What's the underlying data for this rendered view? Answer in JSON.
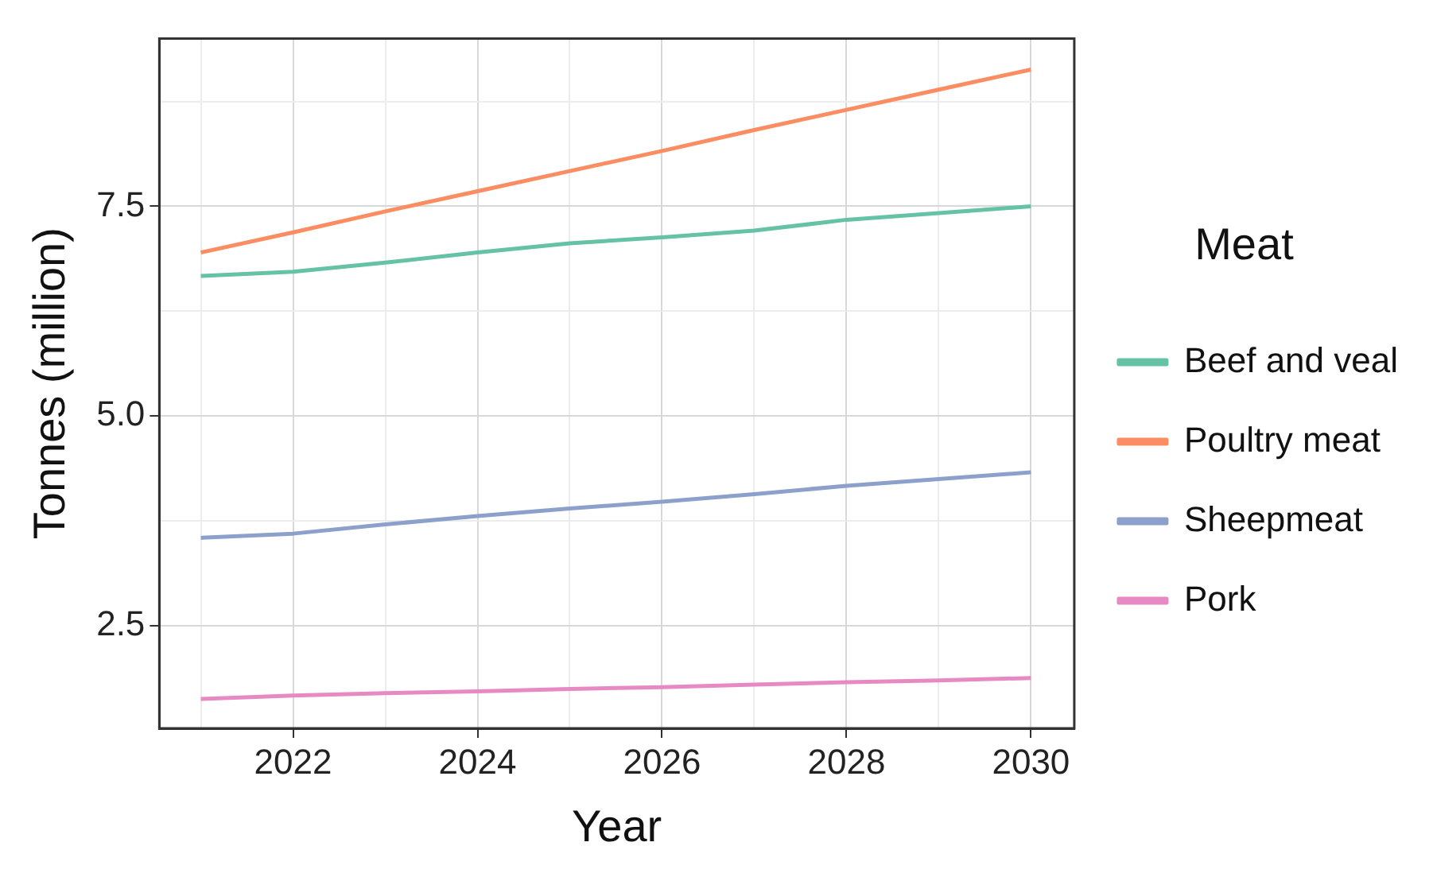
{
  "chart_data": {
    "type": "line",
    "xlabel": "Year",
    "ylabel": "Tonnes (million)",
    "legend_title": "Meat",
    "x": [
      2021,
      2022,
      2023,
      2024,
      2025,
      2026,
      2027,
      2028,
      2029,
      2030
    ],
    "xlim": [
      2020.55,
      2030.47
    ],
    "ylim": [
      1.28,
      9.5
    ],
    "xticks": [
      {
        "value": 2021,
        "label": null
      },
      2022,
      {
        "value": 2023,
        "label": null
      },
      2024,
      {
        "value": 2025,
        "label": null
      },
      2026,
      {
        "value": 2027,
        "label": null
      },
      2028,
      {
        "value": 2029,
        "label": null
      },
      2030
    ],
    "yticks": [
      2.5,
      {
        "value": 3.75,
        "label": null
      },
      {
        "value": 5,
        "label": "5.0"
      },
      {
        "value": 6.25,
        "label": null
      },
      7.5,
      {
        "value": 8.75,
        "label": null
      }
    ],
    "grid": true,
    "legend": "right",
    "marker": "none",
    "line_style": "solid",
    "series": [
      {
        "name": "Beef and veal",
        "color": "#66c2a5",
        "values": [
          6.67,
          6.72,
          6.83,
          6.95,
          7.06,
          7.13,
          7.21,
          7.34,
          7.42,
          7.5
        ]
      },
      {
        "name": "Poultry meat",
        "color": "#fc8d62",
        "values": [
          6.95,
          7.19,
          7.44,
          7.68,
          7.92,
          8.16,
          8.41,
          8.65,
          8.89,
          9.13
        ]
      },
      {
        "name": "Sheepmeat",
        "color": "#8da0cb",
        "values": [
          3.55,
          3.6,
          3.71,
          3.81,
          3.9,
          3.98,
          4.07,
          4.17,
          4.25,
          4.33
        ]
      },
      {
        "name": "Pork",
        "color": "#e78ac3",
        "values": [
          1.63,
          1.67,
          1.7,
          1.72,
          1.75,
          1.77,
          1.8,
          1.83,
          1.85,
          1.88
        ]
      }
    ]
  }
}
